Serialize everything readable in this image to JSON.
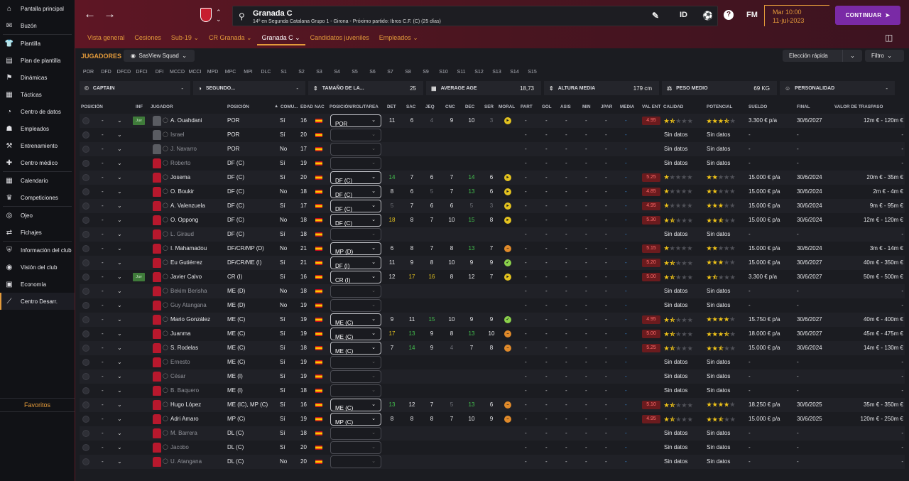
{
  "sidebar": {
    "items": [
      {
        "label": "Pantalla principal",
        "icon": "home-icon"
      },
      {
        "label": "Buzón",
        "icon": "inbox-icon"
      },
      {
        "label": "Plantilla",
        "icon": "shirt-icon"
      },
      {
        "label": "Plan de plantilla",
        "icon": "plan-icon"
      },
      {
        "label": "Dinámicas",
        "icon": "dynamics-icon"
      },
      {
        "label": "Tácticas",
        "icon": "tactics-icon"
      },
      {
        "label": "Centro de datos",
        "icon": "data-icon"
      },
      {
        "label": "Empleados",
        "icon": "staff-icon"
      },
      {
        "label": "Entrenamiento",
        "icon": "training-icon"
      },
      {
        "label": "Centro médico",
        "icon": "medical-icon"
      },
      {
        "label": "Calendario",
        "icon": "calendar-icon"
      },
      {
        "label": "Competiciones",
        "icon": "trophy-icon"
      },
      {
        "label": "Ojeo",
        "icon": "scouting-icon"
      },
      {
        "label": "Fichajes",
        "icon": "transfers-icon"
      },
      {
        "label": "Información del club",
        "icon": "club-info-icon"
      },
      {
        "label": "Visión del club",
        "icon": "club-vision-icon"
      },
      {
        "label": "Economía",
        "icon": "finance-icon"
      },
      {
        "label": "Centro Desarr.",
        "icon": "development-icon"
      }
    ],
    "favorites": "Favoritos"
  },
  "header": {
    "club_title": "Granada C",
    "club_subtitle": "14º en Segunda Catalana Grupo 1 - Girona - Próximo partido: Ibros C.F. (C) (25 días)",
    "icons": [
      "ID",
      "FM"
    ],
    "time": "Mar 10:00",
    "date": "11-jul-2023",
    "continue": "CONTINUAR"
  },
  "tabs": [
    "Vista general",
    "Cesiones",
    "Sub-19",
    "CR Granada",
    "Granada C",
    "Candidatos juveniles",
    "Empleados"
  ],
  "toolbar": {
    "section": "JUGADORES",
    "view": "SasView Squad",
    "quick": "Elección rápida",
    "filter": "Filtro"
  },
  "pos_filters": [
    "POR",
    "DFD",
    "DFCD",
    "DFCI",
    "DFI",
    "MCCD",
    "MCCI",
    "MPD",
    "MPC",
    "MPI",
    "DLC",
    "S1",
    "S2",
    "S3",
    "S4",
    "S5",
    "S6",
    "S7",
    "S8",
    "S9",
    "S10",
    "S11",
    "S12",
    "S13",
    "S14",
    "S15"
  ],
  "stats": [
    {
      "label": "CAPTAIN",
      "value": "-"
    },
    {
      "label": "SEGUNDO...",
      "value": "-"
    },
    {
      "label": "TAMAÑO DE LA...",
      "value": "25"
    },
    {
      "label": "AVERAGE AGE",
      "value": "18,73"
    },
    {
      "label": "ALTURA MEDIA",
      "value": "179 cm"
    },
    {
      "label": "PESO MEDIO",
      "value": "69 KG"
    },
    {
      "label": "PERSONALIDAD",
      "value": "-"
    }
  ],
  "columns": [
    "POSICIÓN",
    "INF",
    "JUGADOR",
    "POSICIÓN",
    "COMU...",
    "EDAD",
    "NAC",
    "POSICIÓN/ROL/TAREA",
    "DET",
    "SAC",
    "JEQ",
    "CNC",
    "DEC",
    "SER",
    "MORAL",
    "PART",
    "GOL",
    "ASIS",
    "MIN",
    "JPAR",
    "MEDIA",
    "VAL ENT",
    "CALIDAD",
    "POTENCIAL",
    "SUELDO",
    "FINAL",
    "VALOR DE TRASPASO"
  ],
  "players": [
    {
      "name": "A. Ouahdani",
      "pos": "POR",
      "com": "Sí",
      "age": "16",
      "role": "POR",
      "inf": "Juv",
      "gk": true,
      "det": "11",
      "sac": "6",
      "jeq": "4",
      "cnc": "9",
      "dec": "10",
      "ser": "3",
      "moral": "good",
      "val": "4.95",
      "cal": 1.5,
      "pot": 3.5,
      "sueldo": "3.300 € p/a",
      "final": "30/6/2027",
      "valor": "12m € - 120m €"
    },
    {
      "name": "Israel",
      "pos": "POR",
      "com": "Sí",
      "age": "20",
      "dim": true,
      "gk": true
    },
    {
      "name": "J. Navarro",
      "pos": "POR",
      "com": "No",
      "age": "17",
      "dim": true,
      "gk": true
    },
    {
      "name": "Roberto",
      "pos": "DF (C)",
      "com": "Sí",
      "age": "19",
      "dim": true
    },
    {
      "name": "Josema",
      "pos": "DF (C)",
      "com": "Sí",
      "age": "20",
      "role": "DF (C)",
      "det": "14",
      "sac": "7",
      "jeq": "6",
      "cnc": "7",
      "dec": "14",
      "ser": "6",
      "moral": "good",
      "val": "5.25",
      "cal": 1,
      "pot": 2,
      "sueldo": "15.000 € p/a",
      "final": "30/6/2024",
      "valor": "20m € - 35m €"
    },
    {
      "name": "O. Boukir",
      "pos": "DF (C)",
      "com": "No",
      "age": "18",
      "role": "DF (C)",
      "det": "8",
      "sac": "6",
      "jeq": "5",
      "cnc": "7",
      "dec": "13",
      "ser": "6",
      "moral": "good",
      "val": "4.85",
      "cal": 1,
      "pot": 2,
      "sueldo": "15.000 € p/a",
      "final": "30/6/2024",
      "valor": "2m € - 4m €"
    },
    {
      "name": "A. Valenzuela",
      "pos": "DF (C)",
      "com": "Sí",
      "age": "17",
      "role": "DF (C)",
      "det": "5",
      "sac": "7",
      "jeq": "6",
      "cnc": "6",
      "dec": "5",
      "ser": "3",
      "moral": "good",
      "val": "4.95",
      "cal": 1,
      "pot": 3,
      "sueldo": "15.000 € p/a",
      "final": "30/6/2024",
      "valor": "9m € - 95m €"
    },
    {
      "name": "O. Oppong",
      "pos": "DF (C)",
      "com": "No",
      "age": "18",
      "role": "DF (C)",
      "det": "18",
      "sac": "8",
      "jeq": "7",
      "cnc": "10",
      "dec": "15",
      "ser": "8",
      "moral": "good",
      "val": "5.30",
      "cal": 1.5,
      "pot": 2.5,
      "sueldo": "15.000 € p/a",
      "final": "30/6/2024",
      "valor": "12m € - 120m €"
    },
    {
      "name": "L. Giraud",
      "pos": "DF (C)",
      "com": "Sí",
      "age": "18",
      "dim": true
    },
    {
      "name": "I. Mahamadou",
      "pos": "DF/CR/MP (D)",
      "com": "No",
      "age": "21",
      "role": "MP (D)",
      "det": "6",
      "sac": "8",
      "jeq": "7",
      "cnc": "8",
      "dec": "13",
      "ser": "7",
      "moral": "low",
      "val": "5.15",
      "cal": 1,
      "pot": 2,
      "sueldo": "15.000 € p/a",
      "final": "30/6/2024",
      "valor": "3m € - 14m €"
    },
    {
      "name": "Eu Gutiérrez",
      "pos": "DF/CR/ME (I)",
      "com": "Sí",
      "age": "21",
      "role": "DF (I)",
      "det": "11",
      "sac": "9",
      "jeq": "8",
      "cnc": "10",
      "dec": "9",
      "ser": "9",
      "moral": "vgood",
      "val": "5.20",
      "cal": 1.5,
      "pot": 3,
      "sueldo": "15.000 € p/a",
      "final": "30/6/2027",
      "valor": "40m € - 350m €"
    },
    {
      "name": "Javier Calvo",
      "pos": "CR (I)",
      "com": "Sí",
      "age": "16",
      "role": "CR (I)",
      "inf": "Juv",
      "det": "12",
      "sac": "17",
      "jeq": "16",
      "cnc": "8",
      "dec": "12",
      "ser": "7",
      "moral": "good",
      "val": "5.00",
      "cal": 1.5,
      "pot": 1.5,
      "sueldo": "3.300 € p/a",
      "final": "30/6/2027",
      "valor": "50m € - 500m €"
    },
    {
      "name": "Bekim Berisha",
      "pos": "ME (D)",
      "com": "No",
      "age": "18",
      "dim": true
    },
    {
      "name": "Guy Atangana",
      "pos": "ME (D)",
      "com": "No",
      "age": "19",
      "dim": true
    },
    {
      "name": "Mario González",
      "pos": "ME (C)",
      "com": "Sí",
      "age": "19",
      "role": "ME (C)",
      "det": "9",
      "sac": "11",
      "jeq": "15",
      "cnc": "10",
      "dec": "9",
      "ser": "9",
      "moral": "vgood",
      "val": "4.95",
      "cal": 1.5,
      "pot": 4,
      "sueldo": "15.750 € p/a",
      "final": "30/6/2027",
      "valor": "40m € - 400m €"
    },
    {
      "name": "Juanma",
      "pos": "ME (C)",
      "com": "Sí",
      "age": "19",
      "role": "ME (C)",
      "det": "17",
      "sac": "13",
      "jeq": "9",
      "cnc": "8",
      "dec": "13",
      "ser": "10",
      "moral": "low",
      "val": "5.00",
      "cal": 1.5,
      "pot": 3.5,
      "sueldo": "18.000 € p/a",
      "final": "30/6/2027",
      "valor": "45m € - 475m €"
    },
    {
      "name": "S. Rodelas",
      "pos": "ME (C)",
      "com": "Sí",
      "age": "18",
      "role": "ME (C)",
      "det": "7",
      "sac": "14",
      "jeq": "9",
      "cnc": "4",
      "dec": "7",
      "ser": "8",
      "moral": "low",
      "val": "5.25",
      "cal": 1.5,
      "pot": 2.5,
      "sueldo": "15.000 € p/a",
      "final": "30/6/2024",
      "valor": "14m € - 130m €"
    },
    {
      "name": "Ernesto",
      "pos": "ME (C)",
      "com": "Sí",
      "age": "19",
      "dim": true
    },
    {
      "name": "César",
      "pos": "ME (I)",
      "com": "Sí",
      "age": "19",
      "dim": true
    },
    {
      "name": "B. Baquero",
      "pos": "ME (I)",
      "com": "Sí",
      "age": "18",
      "dim": true
    },
    {
      "name": "Hugo López",
      "pos": "ME (IC), MP (C)",
      "com": "Sí",
      "age": "16",
      "role": "ME (C)",
      "det": "13",
      "sac": "12",
      "jeq": "7",
      "cnc": "5",
      "dec": "13",
      "ser": "6",
      "moral": "low",
      "val": "5.10",
      "cal": 1.5,
      "pot": 4,
      "sueldo": "18.250 € p/a",
      "final": "30/6/2025",
      "valor": "35m € - 350m €"
    },
    {
      "name": "Adri Amaro",
      "pos": "MP (C)",
      "com": "Sí",
      "age": "19",
      "role": "MP (C)",
      "det": "8",
      "sac": "8",
      "jeq": "8",
      "cnc": "7",
      "dec": "10",
      "ser": "9",
      "moral": "low",
      "val": "4.95",
      "cal": 1.5,
      "pot": 2.5,
      "sueldo": "15.000 € p/a",
      "final": "30/6/2025",
      "valor": "120m € - 250m €"
    },
    {
      "name": "M. Barrera",
      "pos": "DL (C)",
      "com": "Sí",
      "age": "18",
      "dim": true
    },
    {
      "name": "Jacobo",
      "pos": "DL (C)",
      "com": "Sí",
      "age": "20",
      "dim": true
    },
    {
      "name": "U. Atangana",
      "pos": "DL (C)",
      "com": "No",
      "age": "20",
      "dim": true
    }
  ],
  "placeholders": {
    "dash": "-",
    "sin_datos": "Sin datos"
  }
}
